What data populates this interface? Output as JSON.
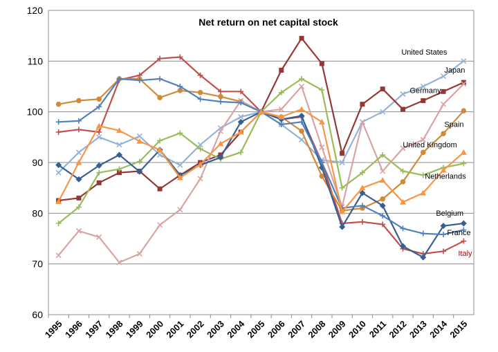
{
  "chart_data": {
    "type": "line",
    "title": "Net return on net capital stock",
    "xlabel": "",
    "ylabel": "",
    "ylim": [
      60,
      120
    ],
    "yticks": [
      60,
      70,
      80,
      90,
      100,
      110,
      120
    ],
    "grid": true,
    "legend": "inline-right",
    "x": [
      "1995",
      "1996",
      "1997",
      "1998",
      "1999",
      "2000",
      "2001",
      "2002",
      "2003",
      "2004",
      "2005",
      "2006",
      "2007",
      "2008",
      "2009",
      "2010",
      "2011",
      "2012",
      "2013",
      "2014",
      "2015"
    ],
    "series": [
      {
        "name": "United States",
        "color": "#95b3d7",
        "marker": "x",
        "values": [
          88.0,
          92.0,
          95.0,
          93.5,
          95.2,
          91.5,
          89.5,
          93.5,
          96.8,
          99.0,
          100.0,
          97.5,
          94.5,
          90.5,
          90.0,
          98.0,
          100.0,
          103.5,
          105.0,
          107.0,
          110.0
        ]
      },
      {
        "name": "Japan",
        "color": "#953735",
        "marker": "square",
        "values": [
          82.5,
          83.0,
          86.0,
          88.0,
          88.3,
          84.8,
          87.5,
          90.0,
          91.5,
          96.0,
          100.0,
          108.2,
          114.5,
          109.5,
          91.8,
          101.5,
          104.5,
          100.5,
          102.2,
          104.0,
          105.8
        ]
      },
      {
        "name": "Germany",
        "color": "#c0504d",
        "marker": "cross",
        "values": [
          96.0,
          96.5,
          96.0,
          106.3,
          107.2,
          110.5,
          110.8,
          107.2,
          104.0,
          104.0,
          100.0,
          98.5,
          99.0,
          90.0,
          78.0,
          78.3,
          77.8,
          73.0,
          72.0,
          72.5,
          74.5
        ]
      },
      {
        "name": "Spain",
        "color": "#d08a3a",
        "marker": "circle",
        "values": [
          101.5,
          102.2,
          102.5,
          106.5,
          106.5,
          102.8,
          104.2,
          103.8,
          103.0,
          102.0,
          100.0,
          99.0,
          96.2,
          87.3,
          80.5,
          81.0,
          82.8,
          86.2,
          92.0,
          95.7,
          100.2
        ]
      },
      {
        "name": "United Kingdom",
        "color": "#d9a3a3",
        "marker": "x",
        "values": [
          71.7,
          76.5,
          75.3,
          70.3,
          72.0,
          77.7,
          80.7,
          86.8,
          96.2,
          102.2,
          100.0,
          100.5,
          105.0,
          93.0,
          81.3,
          98.0,
          88.3,
          92.8,
          94.5,
          101.5,
          105.5
        ]
      },
      {
        "name": "Netherlands",
        "color": "#9bbb59",
        "marker": "cross",
        "values": [
          78.0,
          81.2,
          88.0,
          88.7,
          90.2,
          94.3,
          95.8,
          92.7,
          90.7,
          92.0,
          100.0,
          103.8,
          106.5,
          104.3,
          85.0,
          88.0,
          91.5,
          88.3,
          87.5,
          89.0,
          89.8
        ]
      },
      {
        "name": "Belgium",
        "color": "#376092",
        "marker": "diamond",
        "values": [
          89.5,
          86.7,
          89.4,
          91.5,
          88.2,
          92.5,
          87.5,
          89.5,
          91.0,
          98.0,
          100.0,
          98.5,
          99.2,
          89.0,
          77.3,
          84.0,
          81.5,
          73.5,
          71.3,
          77.5,
          78.0
        ]
      },
      {
        "name": "France",
        "color": "#4f81bd",
        "marker": "cross",
        "values": [
          98.0,
          98.2,
          101.0,
          106.5,
          106.2,
          106.5,
          105.0,
          102.5,
          102.0,
          101.8,
          100.0,
          97.5,
          98.0,
          90.0,
          81.0,
          81.5,
          79.5,
          77.0,
          76.0,
          75.8,
          76.7
        ]
      },
      {
        "name": "",
        "color": "#f79646",
        "marker": "triangle",
        "values": [
          82.3,
          90.0,
          97.2,
          96.3,
          94.2,
          92.5,
          87.0,
          89.6,
          93.7,
          96.0,
          100.0,
          99.0,
          100.5,
          98.0,
          80.3,
          85.0,
          86.5,
          82.2,
          84.0,
          88.5,
          92.0
        ]
      }
    ],
    "labels": [
      {
        "text": "United States",
        "color": "#000000",
        "anchor": [
          "2015",
          111.3
        ],
        "dx": -90
      },
      {
        "text": "Japan",
        "color": "#000000",
        "anchor": [
          "2015",
          107.7
        ],
        "dx": -28
      },
      {
        "text": "Germany",
        "color": "#000000",
        "anchor": [
          "2015",
          103.7
        ],
        "dx": -78
      },
      {
        "text": "Spain",
        "color": "#000000",
        "anchor": [
          "2015",
          97.0
        ],
        "dx": -28
      },
      {
        "text": "United Kingdom",
        "color": "#000000",
        "anchor": [
          "2015",
          93.0
        ],
        "dx": -88
      },
      {
        "text": "Netherlands",
        "color": "#000000",
        "anchor": [
          "2015",
          86.8
        ],
        "dx": -56
      },
      {
        "text": "Belgium",
        "color": "#000000",
        "anchor": [
          "2015",
          79.5
        ],
        "dx": -40
      },
      {
        "text": "France",
        "color": "#000000",
        "anchor": [
          "2015",
          75.7
        ],
        "dx": -24
      },
      {
        "text": "Italy",
        "color": "#c00000",
        "anchor": [
          "2015",
          71.6
        ],
        "dx": -8
      }
    ]
  }
}
